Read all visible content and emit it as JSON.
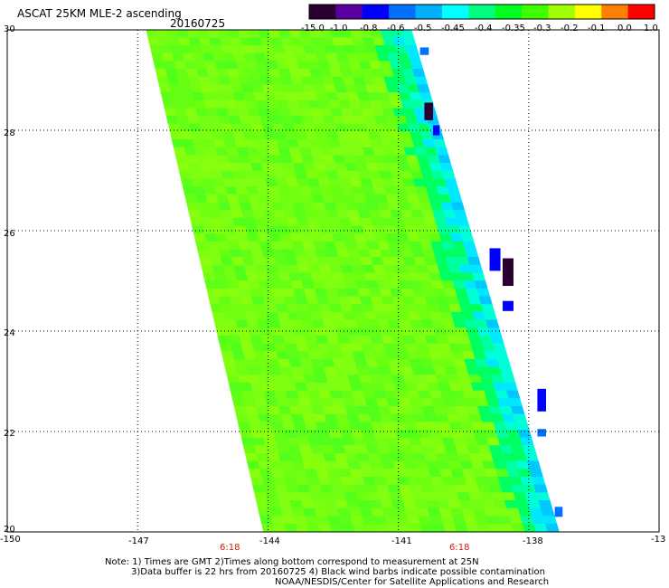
{
  "header": {
    "title": "ASCAT 25KM MLE-2 ascending",
    "date": "20160725"
  },
  "colorbar": {
    "labels": [
      "-15.0",
      "-1.0",
      "-0.8",
      "-0.6",
      "-0.5",
      "-0.45",
      "-0.4",
      "-0.35",
      "-0.3",
      "-0.2",
      "-0.1",
      "0.0",
      "1.0"
    ],
    "colors": [
      "#2a0030",
      "#5a00a0",
      "#0000ff",
      "#0070ff",
      "#00b0ff",
      "#00ffff",
      "#00ff80",
      "#00ff20",
      "#40ff00",
      "#a0ff00",
      "#ffff00",
      "#ff8000",
      "#ff0000"
    ]
  },
  "axes": {
    "lon_labels": [
      "-150",
      "-147",
      "-144",
      "-141",
      "-138",
      "-13"
    ],
    "lat_labels": [
      "30",
      "28",
      "26",
      "24",
      "22",
      "20"
    ],
    "time_labels": [
      "6:18",
      "6:18"
    ]
  },
  "map_data": {
    "lon_range": [
      -150,
      -135
    ],
    "lat_range": [
      20,
      30
    ],
    "swath_corners": [
      [
        -146.8,
        30
      ],
      [
        -140.7,
        30
      ],
      [
        -137.3,
        20
      ],
      [
        -144.1,
        20
      ]
    ],
    "field_description": "MLE values mostly -0.3 to -0.2 (green); low values -0.45 to -15.0 (cyan to dark purple) along the eastern swath edge"
  },
  "notes": {
    "line1": "Note: 1) Times are GMT 2)Times along bottom correspond to measurement at 25N",
    "line2": "3)Data buffer is 22 hrs from 20160725 4) Black wind barbs indicate possible contamination",
    "line3": "NOAA/NESDIS/Center for Satellite Applications and Research"
  }
}
